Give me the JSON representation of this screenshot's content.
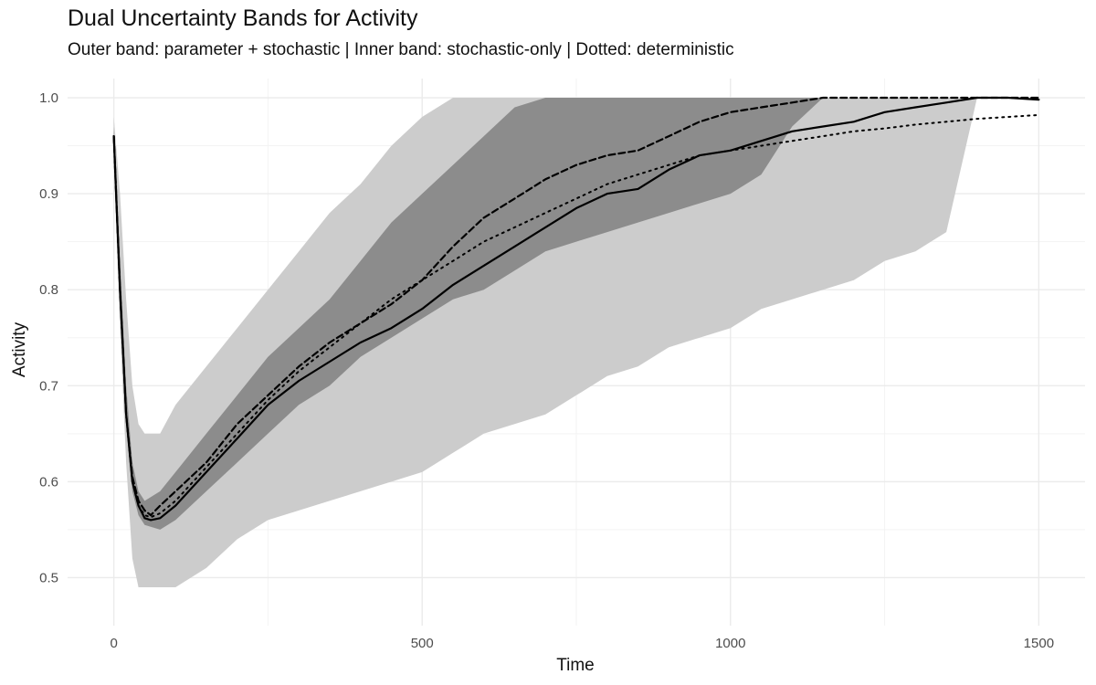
{
  "chart_data": {
    "type": "line",
    "title": "Dual Uncertainty Bands for Activity",
    "subtitle": "Outer band: parameter + stochastic | Inner band: stochastic-only | Dotted: deterministic",
    "xlabel": "Time",
    "ylabel": "Activity",
    "xlim": [
      -75,
      1575
    ],
    "ylim": [
      0.45,
      1.02
    ],
    "x_ticks": [
      0,
      500,
      1000,
      1500
    ],
    "x_tick_labels": [
      "0",
      "500",
      "1000",
      "1500"
    ],
    "y_ticks": [
      0.5,
      0.6,
      0.7,
      0.8,
      0.9,
      1.0
    ],
    "y_tick_labels": [
      "0.5",
      "0.6",
      "0.7",
      "0.8",
      "0.9",
      "1.0"
    ],
    "grid": true,
    "legend": "none",
    "colors": {
      "outer_band": "#cccccc",
      "inner_band": "#8c8c8c",
      "line": "#000000",
      "grid": "#ebebeb"
    },
    "bands": [
      {
        "name": "Outer band",
        "x": [
          0,
          10,
          20,
          30,
          40,
          50,
          75,
          100,
          150,
          200,
          250,
          300,
          350,
          400,
          450,
          500,
          550,
          600,
          650,
          700,
          750,
          800,
          850,
          900,
          950,
          1000,
          1050,
          1100,
          1150,
          1200,
          1250,
          1300,
          1350,
          1400,
          1450,
          1500
        ],
        "lower": [
          0.93,
          0.76,
          0.62,
          0.52,
          0.49,
          0.49,
          0.49,
          0.49,
          0.51,
          0.54,
          0.56,
          0.57,
          0.58,
          0.59,
          0.6,
          0.61,
          0.63,
          0.65,
          0.66,
          0.67,
          0.69,
          0.71,
          0.72,
          0.74,
          0.75,
          0.76,
          0.78,
          0.79,
          0.8,
          0.81,
          0.83,
          0.84,
          0.86,
          null,
          null,
          null
        ],
        "upper": [
          0.98,
          0.9,
          0.79,
          0.7,
          0.66,
          0.65,
          0.65,
          0.68,
          0.72,
          0.76,
          0.8,
          0.84,
          0.88,
          0.91,
          0.95,
          0.98,
          1.0,
          1.0,
          1.0,
          1.0,
          1.0,
          1.0,
          1.0,
          1.0,
          1.0,
          1.0,
          1.0,
          1.0,
          1.0,
          1.0,
          1.0,
          1.0,
          1.0,
          1.0,
          1.0,
          1.0
        ]
      },
      {
        "name": "Inner band",
        "x": [
          0,
          10,
          20,
          30,
          40,
          50,
          75,
          100,
          150,
          200,
          250,
          300,
          350,
          400,
          450,
          500,
          550,
          600,
          650,
          700,
          750,
          800,
          850,
          900,
          950,
          1000,
          1050,
          1100,
          1150
        ],
        "lower": [
          0.95,
          0.79,
          0.66,
          0.59,
          0.565,
          0.555,
          0.55,
          0.56,
          0.59,
          0.62,
          0.65,
          0.68,
          0.7,
          0.73,
          0.75,
          0.77,
          0.79,
          0.8,
          0.82,
          0.84,
          0.85,
          0.86,
          0.87,
          0.88,
          0.89,
          0.9,
          0.92,
          0.97,
          1.0
        ],
        "upper": [
          0.97,
          0.83,
          0.7,
          0.62,
          0.59,
          0.58,
          0.59,
          0.61,
          0.65,
          0.69,
          0.73,
          0.76,
          0.79,
          0.83,
          0.87,
          0.9,
          0.93,
          0.96,
          0.99,
          1.0,
          1.0,
          1.0,
          1.0,
          1.0,
          1.0,
          1.0,
          1.0,
          1.0,
          1.0
        ]
      }
    ],
    "series": [
      {
        "style": "solid",
        "x": [
          0,
          10,
          20,
          30,
          40,
          50,
          60,
          75,
          100,
          150,
          200,
          250,
          300,
          350,
          400,
          450,
          500,
          550,
          600,
          650,
          700,
          750,
          800,
          850,
          900,
          950,
          1000,
          1050,
          1100,
          1150,
          1200,
          1250,
          1300,
          1350,
          1400,
          1450,
          1500
        ],
        "y": [
          0.96,
          0.8,
          0.67,
          0.6,
          0.575,
          0.562,
          0.56,
          0.562,
          0.575,
          0.61,
          0.645,
          0.68,
          0.705,
          0.725,
          0.745,
          0.76,
          0.78,
          0.805,
          0.825,
          0.845,
          0.865,
          0.885,
          0.9,
          0.905,
          0.925,
          0.94,
          0.945,
          0.955,
          0.965,
          0.97,
          0.975,
          0.985,
          0.99,
          0.995,
          1.0,
          1.0,
          0.998
        ]
      },
      {
        "style": "dashed",
        "x": [
          0,
          10,
          20,
          30,
          40,
          50,
          60,
          75,
          100,
          150,
          200,
          250,
          300,
          350,
          400,
          450,
          500,
          550,
          600,
          650,
          700,
          750,
          800,
          850,
          900,
          950,
          1000,
          1050,
          1100,
          1150,
          1200,
          1250,
          1300,
          1350,
          1400,
          1450,
          1500
        ],
        "y": [
          0.96,
          0.8,
          0.67,
          0.605,
          0.58,
          0.57,
          0.565,
          0.575,
          0.59,
          0.62,
          0.66,
          0.69,
          0.72,
          0.745,
          0.765,
          0.785,
          0.81,
          0.845,
          0.875,
          0.895,
          0.915,
          0.93,
          0.94,
          0.945,
          0.96,
          0.975,
          0.985,
          0.99,
          0.995,
          1.0,
          1.0,
          1.0,
          1.0,
          1.0,
          1.0,
          1.0,
          1.0
        ]
      },
      {
        "style": "dotted",
        "x": [
          0,
          10,
          20,
          30,
          40,
          50,
          60,
          75,
          100,
          150,
          200,
          250,
          300,
          350,
          400,
          450,
          500,
          550,
          600,
          650,
          700,
          750,
          800,
          850,
          900,
          950,
          1000,
          1050,
          1100,
          1150,
          1200,
          1250,
          1300,
          1350,
          1400,
          1450,
          1500
        ],
        "y": [
          0.96,
          0.8,
          0.67,
          0.6,
          0.575,
          0.565,
          0.563,
          0.567,
          0.58,
          0.615,
          0.65,
          0.685,
          0.715,
          0.74,
          0.765,
          0.79,
          0.81,
          0.83,
          0.85,
          0.865,
          0.88,
          0.895,
          0.91,
          0.92,
          0.93,
          0.94,
          0.945,
          0.95,
          0.955,
          0.96,
          0.965,
          0.968,
          0.972,
          0.975,
          0.978,
          0.98,
          0.982
        ]
      }
    ]
  }
}
